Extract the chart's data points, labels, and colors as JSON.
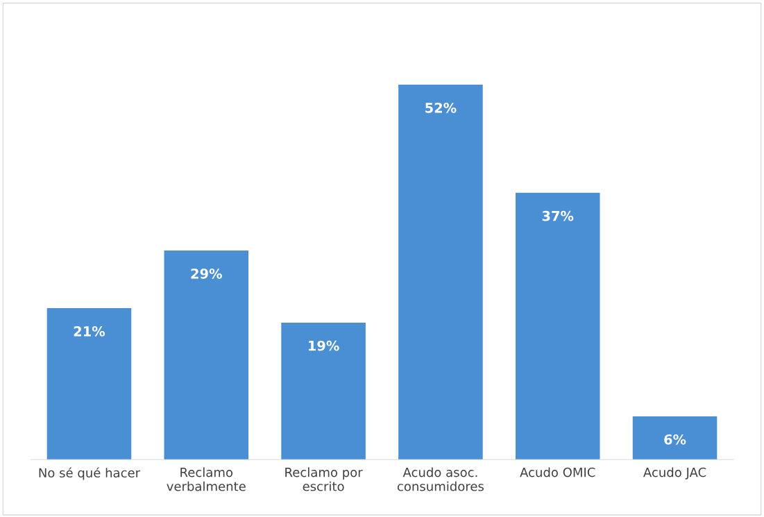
{
  "chart_data": {
    "type": "bar",
    "categories": [
      "No sé qué hacer",
      "Reclamo\nverbalmente",
      "Reclamo por\nescrito",
      "Acudo asoc.\nconsumidores",
      "Acudo OMIC",
      "Acudo JAC"
    ],
    "values": [
      21,
      29,
      19,
      52,
      37,
      6
    ],
    "value_labels": [
      "21%",
      "29%",
      "19%",
      "52%",
      "37%",
      "6%"
    ],
    "color": "#4a8fd3",
    "grid": false,
    "legend": false
  }
}
